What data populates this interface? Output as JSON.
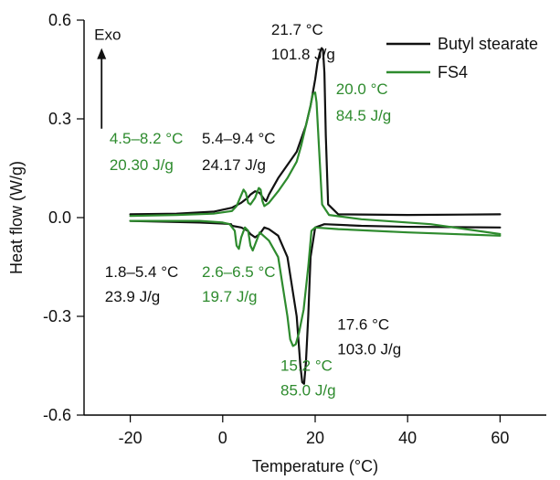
{
  "chart_data": {
    "type": "line",
    "xlabel": "Temperature (°C)",
    "ylabel": "Heat flow (W/g)",
    "xlim": [
      -30,
      70
    ],
    "ylim": [
      -0.6,
      0.6
    ],
    "x_ticks": [
      -20,
      0,
      20,
      40,
      60
    ],
    "y_ticks": [
      0.6,
      0.3,
      0.0,
      -0.3,
      -0.6
    ],
    "x_tick_labels": [
      "-20",
      "0",
      "20",
      "40",
      "60"
    ],
    "y_tick_labels": [
      "0.6",
      "0.3",
      "0.0",
      "-0.3",
      "-0.6"
    ],
    "grid": false,
    "legend_position": "top-right",
    "series": [
      {
        "name": "Butyl stearate",
        "color": "#111111",
        "curves": [
          {
            "x": [
              -20,
              -10,
              -2,
              2,
              4,
              5.4,
              6,
              7,
              8,
              9,
              9.4,
              10,
              12,
              14,
              16,
              17,
              18,
              19,
              20,
              20.5,
              21,
              21.4,
              21.7,
              22,
              22.3,
              22.8,
              25,
              40,
              60
            ],
            "y": [
              0.01,
              0.012,
              0.018,
              0.03,
              0.045,
              0.06,
              0.07,
              0.08,
              0.075,
              0.055,
              0.05,
              0.07,
              0.12,
              0.16,
              0.2,
              0.24,
              0.28,
              0.34,
              0.42,
              0.47,
              0.5,
              0.515,
              0.51,
              0.44,
              0.25,
              0.04,
              0.01,
              0.008,
              0.01
            ]
          },
          {
            "x": [
              60,
              40,
              30,
              22,
              20,
              19,
              18.5,
              18,
              17.6,
              17.2,
              16.8,
              16,
              14,
              12,
              10,
              9,
              8,
              7,
              6,
              5.4,
              4,
              2,
              1.8,
              0,
              -5,
              -20
            ],
            "y": [
              -0.03,
              -0.028,
              -0.025,
              -0.02,
              -0.03,
              -0.12,
              -0.3,
              -0.44,
              -0.505,
              -0.5,
              -0.45,
              -0.3,
              -0.12,
              -0.055,
              -0.035,
              -0.03,
              -0.05,
              -0.06,
              -0.05,
              -0.04,
              -0.03,
              -0.025,
              -0.02,
              -0.018,
              -0.015,
              -0.01
            ]
          }
        ]
      },
      {
        "name": "FS4",
        "color": "#2e8b2e",
        "curves": [
          {
            "x": [
              -20,
              -10,
              -2,
              2,
              3,
              4.5,
              5,
              5.5,
              6,
              7,
              7.8,
              8.2,
              8.6,
              9,
              10,
              12,
              14,
              16,
              17,
              18,
              19,
              19.5,
              20,
              20.3,
              20.8,
              21.5,
              23,
              30,
              45,
              60
            ],
            "y": [
              0.005,
              0.008,
              0.012,
              0.02,
              0.035,
              0.085,
              0.075,
              0.045,
              0.04,
              0.06,
              0.09,
              0.085,
              0.05,
              0.035,
              0.045,
              0.08,
              0.12,
              0.17,
              0.22,
              0.28,
              0.34,
              0.375,
              0.38,
              0.35,
              0.22,
              0.04,
              0.008,
              -0.005,
              -0.02,
              -0.05
            ]
          },
          {
            "x": [
              60,
              40,
              25,
              20,
              19.2,
              18.5,
              17.5,
              16.5,
              15.8,
              15.2,
              14.6,
              14,
              12,
              10,
              8,
              6.5,
              6,
              5.5,
              4.8,
              4,
              3.5,
              3,
              2.6,
              1.5,
              0,
              -5,
              -20
            ],
            "y": [
              -0.055,
              -0.045,
              -0.035,
              -0.03,
              -0.04,
              -0.15,
              -0.28,
              -0.35,
              -0.385,
              -0.39,
              -0.37,
              -0.3,
              -0.12,
              -0.07,
              -0.045,
              -0.1,
              -0.085,
              -0.04,
              -0.03,
              -0.06,
              -0.095,
              -0.085,
              -0.04,
              -0.02,
              -0.015,
              -0.01,
              -0.01
            ]
          }
        ]
      }
    ],
    "annotations": [
      {
        "text": "Exo",
        "x": -27.8,
        "y": 0.54,
        "color": "#111111"
      },
      {
        "text": "21.7 °C",
        "x": 10.5,
        "y": 0.555,
        "color": "#111111"
      },
      {
        "text": "101.8 J/g",
        "x": 10.5,
        "y": 0.48,
        "color": "#111111"
      },
      {
        "text": "20.0 °C",
        "x": 24.5,
        "y": 0.375,
        "color": "#2e8b2e"
      },
      {
        "text": "84.5 J/g",
        "x": 24.5,
        "y": 0.295,
        "color": "#2e8b2e"
      },
      {
        "text": "4.5–8.2 °C",
        "x": -24.5,
        "y": 0.225,
        "color": "#2e8b2e"
      },
      {
        "text": "20.30 J/g",
        "x": -24.5,
        "y": 0.145,
        "color": "#2e8b2e"
      },
      {
        "text": "5.4–9.4 °C",
        "x": -4.5,
        "y": 0.225,
        "color": "#111111"
      },
      {
        "text": "24.17 J/g",
        "x": -4.5,
        "y": 0.145,
        "color": "#111111"
      },
      {
        "text": "1.8–5.4 °C",
        "x": -25.5,
        "y": -0.18,
        "color": "#111111"
      },
      {
        "text": "23.9 J/g",
        "x": -25.5,
        "y": -0.255,
        "color": "#111111"
      },
      {
        "text": "2.6–6.5 °C",
        "x": -4.5,
        "y": -0.18,
        "color": "#2e8b2e"
      },
      {
        "text": "19.7 J/g",
        "x": -4.5,
        "y": -0.255,
        "color": "#2e8b2e"
      },
      {
        "text": "17.6 °C",
        "x": 24.8,
        "y": -0.34,
        "color": "#111111"
      },
      {
        "text": "103.0 J/g",
        "x": 24.8,
        "y": -0.415,
        "color": "#111111"
      },
      {
        "text": "15.2 °C",
        "x": 12.5,
        "y": -0.465,
        "color": "#2e8b2e"
      },
      {
        "text": "85.0 J/g",
        "x": 12.5,
        "y": -0.54,
        "color": "#2e8b2e"
      }
    ],
    "exo_arrow": {
      "x": -26.2,
      "y_from": 0.27,
      "y_to": 0.515,
      "color": "#111111"
    }
  }
}
